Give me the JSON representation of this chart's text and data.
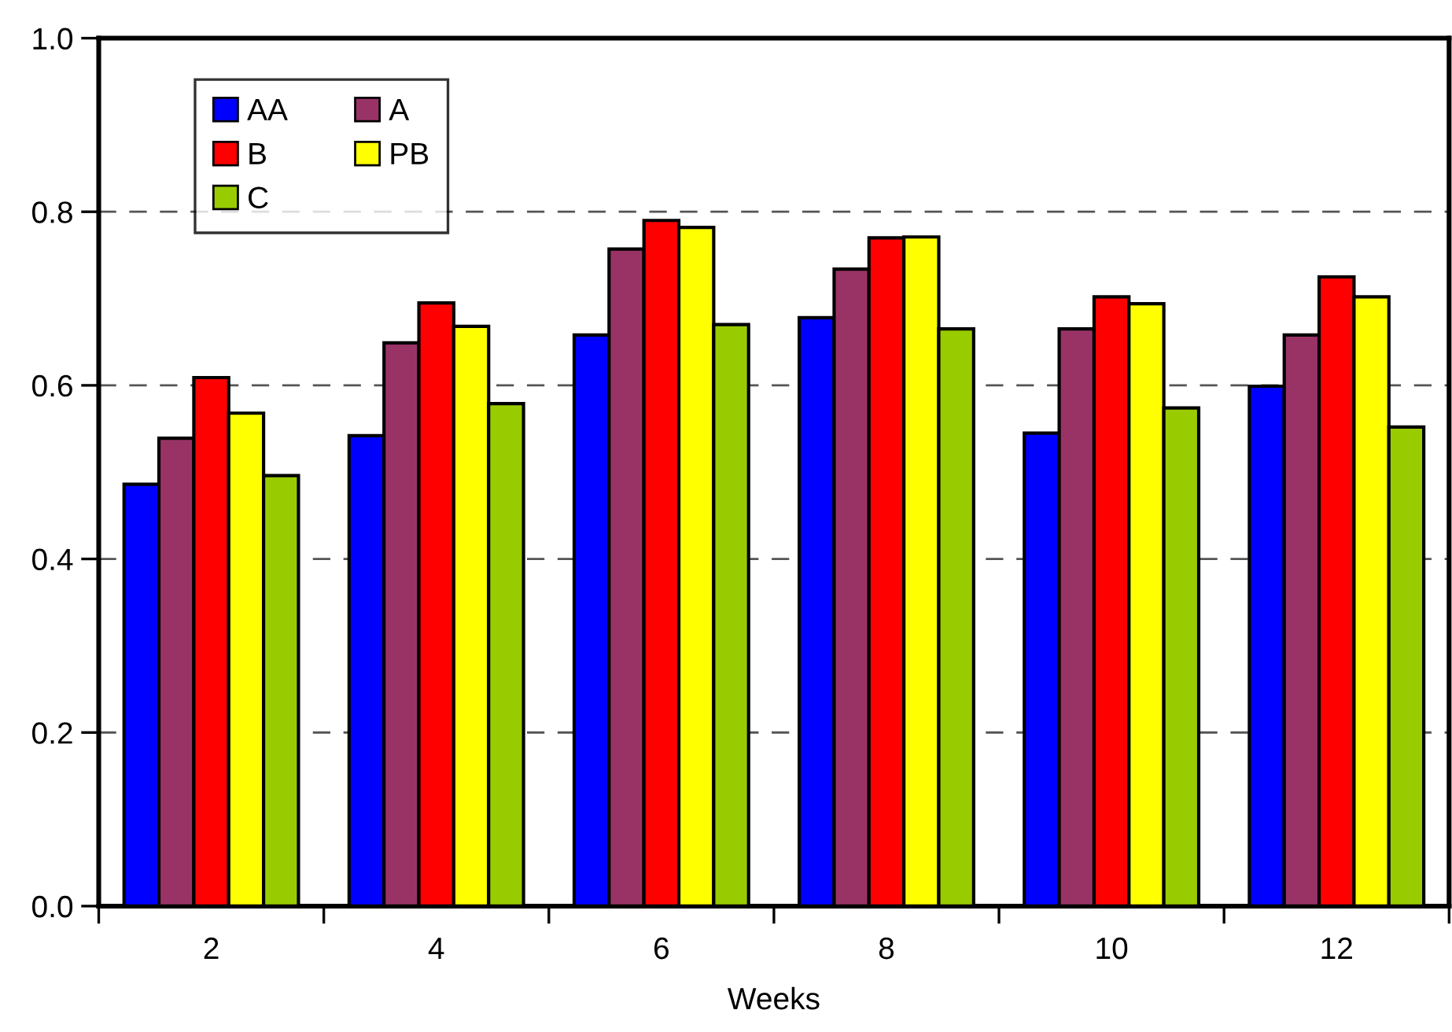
{
  "chart_data": {
    "type": "bar",
    "xlabel": "Weeks",
    "categories": [
      "2",
      "4",
      "6",
      "8",
      "10",
      "12"
    ],
    "series": [
      {
        "name": "AA",
        "color": "#0000ff",
        "values": [
          0.486,
          0.542,
          0.658,
          0.678,
          0.545,
          0.599
        ]
      },
      {
        "name": "A",
        "color": "#993366",
        "values": [
          0.539,
          0.649,
          0.757,
          0.734,
          0.665,
          0.658
        ]
      },
      {
        "name": "B",
        "color": "#ff0000",
        "values": [
          0.609,
          0.695,
          0.79,
          0.77,
          0.702,
          0.725
        ]
      },
      {
        "name": "PB",
        "color": "#ffff00",
        "values": [
          0.568,
          0.668,
          0.782,
          0.771,
          0.694,
          0.702
        ]
      },
      {
        "name": "C",
        "color": "#99cc00",
        "values": [
          0.496,
          0.579,
          0.67,
          0.665,
          0.574,
          0.552
        ]
      }
    ],
    "ylim": [
      0,
      1
    ],
    "yticks": [
      {
        "value": 0,
        "label": "0.0"
      },
      {
        "value": 0.2,
        "label": "0.2"
      },
      {
        "value": 0.4,
        "label": "0.4"
      },
      {
        "value": 0.6,
        "label": "0.6"
      },
      {
        "value": 0.8,
        "label": "0.8"
      },
      {
        "value": 1,
        "label": "1.0"
      }
    ],
    "grid": "y",
    "legend": "top left"
  }
}
